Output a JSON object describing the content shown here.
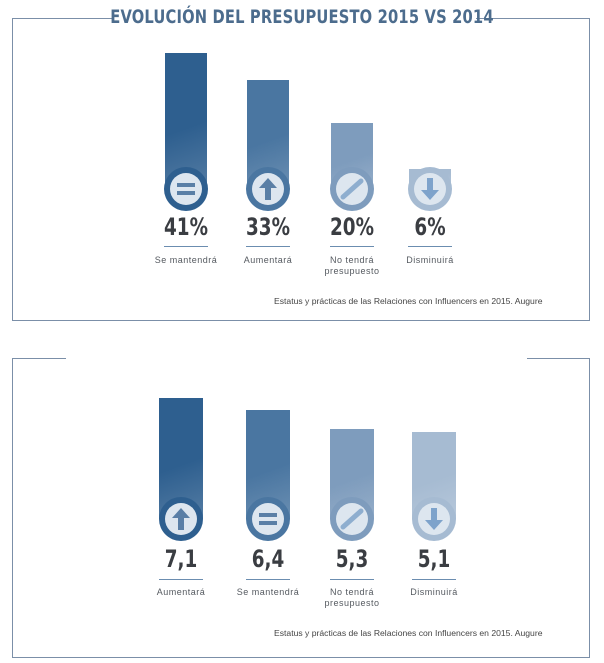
{
  "title": "EVOLUCIÓN DEL PRESUPUESTO 2015 VS 2014",
  "charts_source": "Estatus y prácticas de las Relaciones con Influencers en 2015. Augure",
  "chart_data": [
    {
      "type": "bar",
      "title": "EVOLUCIÓN DEL PRESUPUESTO 2015 VS 2014",
      "categories": [
        "Se mantendrá",
        "Aumentará",
        "No tendrá presupuesto",
        "Disminuirá"
      ],
      "values": [
        41,
        33,
        20,
        6
      ],
      "value_labels": [
        "41%",
        "33%",
        "20%",
        "6%"
      ],
      "icons": [
        "equals-icon",
        "arrow-up-icon",
        "slash-icon",
        "arrow-down-icon"
      ],
      "colors": [
        "#2e5f8f",
        "#4a76a1",
        "#7e9cbd",
        "#a6bbd2"
      ],
      "ylim": [
        0,
        41
      ],
      "source": "Estatus y prácticas de las Relaciones con Influencers en 2015. Augure"
    },
    {
      "type": "bar",
      "title": "",
      "categories": [
        "Aumentará",
        "Se mantendrá",
        "No tendrá presupuesto",
        "Disminuirá"
      ],
      "values": [
        7.1,
        6.4,
        5.3,
        5.1
      ],
      "value_labels": [
        "7,1",
        "6,4",
        "5,3",
        "5,1"
      ],
      "icons": [
        "arrow-up-icon",
        "equals-icon",
        "slash-icon",
        "arrow-down-icon"
      ],
      "colors": [
        "#2e5f8f",
        "#4a76a1",
        "#7e9cbd",
        "#a6bbd2"
      ],
      "ylim": [
        0,
        7.1
      ],
      "source": "Estatus y prácticas de las Relaciones con Influencers en 2015. Augure"
    }
  ]
}
